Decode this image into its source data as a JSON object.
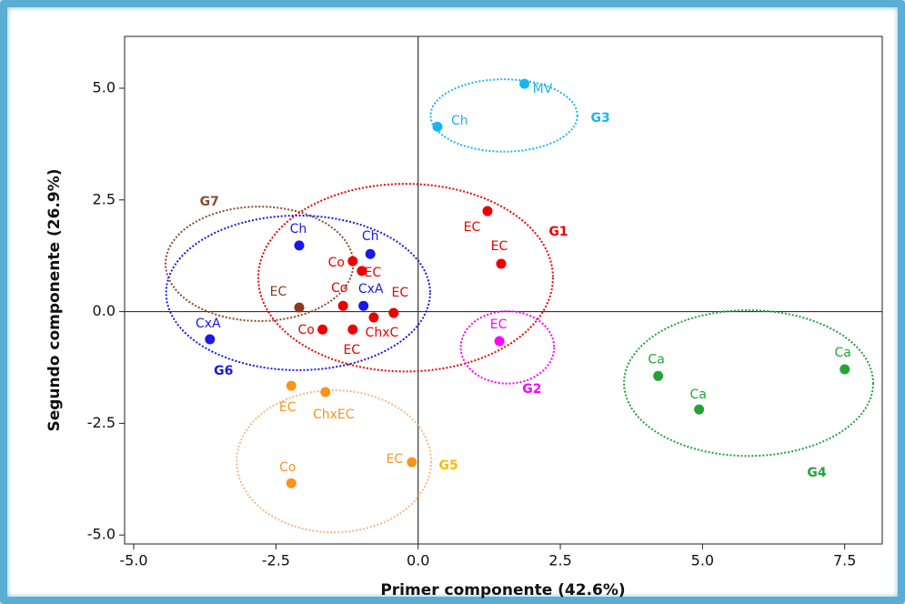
{
  "chart_data": {
    "type": "scatter",
    "x_label": "Primer componente (42.6%)",
    "y_label": "Segundo componente (26.9%)",
    "xlim": [
      -5.16,
      8.16
    ],
    "ylim": [
      -5.2,
      6.16
    ],
    "xticks": [
      {
        "value": -5,
        "label": "-5.0"
      },
      -2.5,
      {
        "value": 0,
        "label": "0.0"
      },
      2.5,
      {
        "value": 5,
        "label": "5.0"
      },
      7.5
    ],
    "yticks": [
      {
        "value": -5,
        "label": "-5.0"
      },
      -2.5,
      {
        "value": 0,
        "label": "0.0"
      },
      2.5,
      {
        "value": 5,
        "label": "5.0"
      }
    ],
    "vlines": [
      0
    ],
    "hlines": [
      0
    ],
    "series": [
      {
        "color": "#1ab4f0",
        "x": [
          1.87,
          0.34
        ],
        "y": [
          5.1,
          4.14
        ],
        "labels": [
          "MV",
          "Ch"
        ]
      },
      {
        "color": "#ee0000",
        "x": [
          1.22,
          1.46,
          -1.15,
          -0.99,
          -1.32,
          -0.43,
          -0.78,
          -1.68,
          -1.15
        ],
        "y": [
          2.25,
          1.07,
          1.13,
          0.91,
          0.13,
          -0.03,
          -0.13,
          -0.4,
          -0.4
        ],
        "labels": [
          "EC",
          "EC",
          "Co",
          "EC",
          "Co",
          "EC",
          "ChxC",
          "Co",
          "EC"
        ]
      },
      {
        "color": "#1818e8",
        "x": [
          -2.09,
          -0.84,
          -0.96,
          -3.66
        ],
        "y": [
          1.48,
          1.29,
          0.13,
          -0.62
        ],
        "labels": [
          "Ch",
          "Ch",
          "CxA",
          "CxA"
        ]
      },
      {
        "color": "#ff00ff",
        "x": [
          1.43
        ],
        "y": [
          -0.66
        ],
        "labels": [
          "EC"
        ]
      },
      {
        "color": "#8b3a1a",
        "x": [
          -2.09
        ],
        "y": [
          0.09
        ],
        "labels": [
          "EC"
        ]
      },
      {
        "color": "#f7941d",
        "x": [
          -2.23,
          -1.63,
          -0.11,
          -2.23
        ],
        "y": [
          -1.66,
          -1.8,
          -3.37,
          -3.84
        ],
        "labels": [
          "EC",
          "ChxEC",
          "EC",
          "Co"
        ]
      },
      {
        "color": "#22a33a",
        "x": [
          4.22,
          4.94,
          7.5
        ],
        "y": [
          -1.44,
          -2.19,
          -1.29
        ],
        "labels": [
          "Ca",
          "Ca",
          "Ca"
        ]
      }
    ],
    "groups": [
      {
        "name": "G3",
        "color": "#1eb4f0",
        "label_color": "#1eb4f0",
        "cx": 1.51,
        "cy": 4.39,
        "rx": 1.29,
        "ry": 0.81
      },
      {
        "name": "G1",
        "color": "#ee0000",
        "label_color": "#ee0000",
        "cx": -0.22,
        "cy": 0.76,
        "rx": 2.59,
        "ry": 2.1
      },
      {
        "name": "G7",
        "color": "#8b4a2b",
        "label_color": "#8b4a2b",
        "cx": -2.79,
        "cy": 1.07,
        "rx": 1.65,
        "ry": 1.28
      },
      {
        "name": "G6",
        "color": "#1818e8",
        "label_color": "#1818e8",
        "cx": -2.11,
        "cy": 0.42,
        "rx": 2.32,
        "ry": 1.73
      },
      {
        "name": "G2",
        "color": "#ff00ff",
        "label_color": "#ff00ff",
        "cx": 1.57,
        "cy": -0.8,
        "rx": 0.82,
        "ry": 0.81
      },
      {
        "name": "G4",
        "color": "#22a33a",
        "label_color": "#22a33a",
        "cx": 5.81,
        "cy": -1.6,
        "rx": 2.19,
        "ry": 1.63
      },
      {
        "name": "G5",
        "color": "#f5b88a",
        "label_color": "#f5c000",
        "cx": -1.48,
        "cy": -3.35,
        "rx": 1.71,
        "ry": 1.59
      }
    ]
  }
}
